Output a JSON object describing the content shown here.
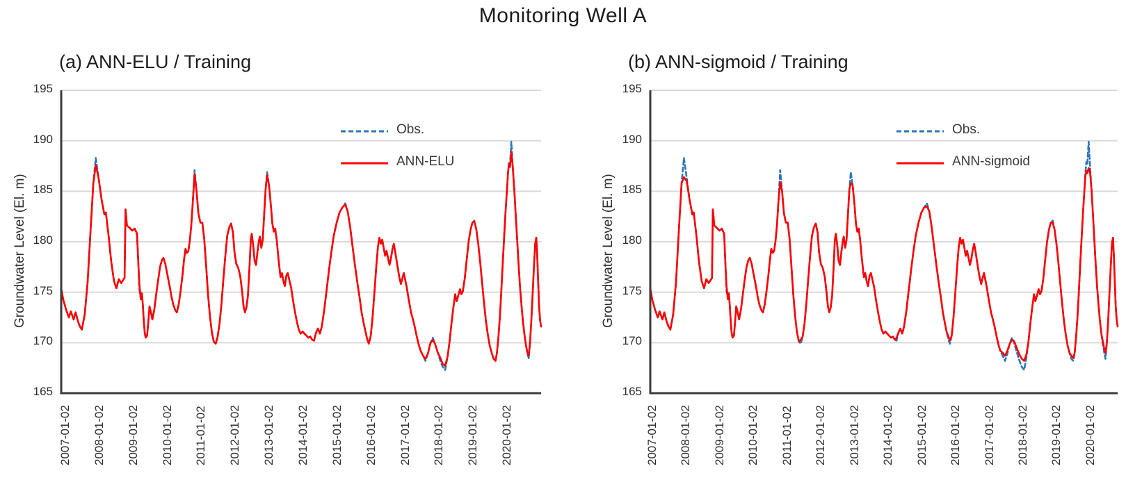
{
  "colors": {
    "obs_blue": "#2E75B6",
    "model_red": "#FF0000",
    "gridline": "#D9D9D9",
    "axis": "#3A3A3A",
    "text": "#1C1C1C"
  },
  "chart_data": {
    "type": "line",
    "title": "Monitoring Well A",
    "ylabel": "Groundwater Level (El. m)",
    "xlabel": "",
    "ylim": [
      165,
      195
    ],
    "y_ticks": [
      195,
      190,
      185,
      180,
      175,
      170,
      165
    ],
    "grid": "horizontal",
    "legend_position": "inside-top-center",
    "x_tick_labels": [
      "2007-01-02",
      "2008-01-02",
      "2009-01-02",
      "2010-01-02",
      "2011-01-02",
      "2012-01-02",
      "2013-01-02",
      "2014-01-02",
      "2015-01-02",
      "2016-01-02",
      "2017-01-02",
      "2018-01-02",
      "2019-01-02",
      "2020-01-02"
    ],
    "x": [
      0.0,
      0.004,
      0.01,
      0.016,
      0.02,
      0.026,
      0.03,
      0.035,
      0.039,
      0.043,
      0.049,
      0.055,
      0.061,
      0.067,
      0.072,
      0.078,
      0.084,
      0.09,
      0.093,
      0.099,
      0.104,
      0.11,
      0.115,
      0.12,
      0.125,
      0.129,
      0.132,
      0.134,
      0.137,
      0.142,
      0.148,
      0.153,
      0.158,
      0.161,
      0.163,
      0.166,
      0.168,
      0.17,
      0.172,
      0.174,
      0.176,
      0.179,
      0.181,
      0.184,
      0.187,
      0.19,
      0.194,
      0.198,
      0.202,
      0.206,
      0.21,
      0.213,
      0.217,
      0.221,
      0.226,
      0.23,
      0.234,
      0.238,
      0.241,
      0.245,
      0.249,
      0.253,
      0.256,
      0.259,
      0.262,
      0.265,
      0.268,
      0.271,
      0.274,
      0.278,
      0.282,
      0.286,
      0.29,
      0.294,
      0.298,
      0.302,
      0.306,
      0.31,
      0.314,
      0.318,
      0.322,
      0.326,
      0.33,
      0.334,
      0.338,
      0.342,
      0.346,
      0.35,
      0.354,
      0.358,
      0.361,
      0.365,
      0.369,
      0.373,
      0.377,
      0.38,
      0.383,
      0.386,
      0.389,
      0.392,
      0.395,
      0.397,
      0.4,
      0.403,
      0.406,
      0.409,
      0.412,
      0.414,
      0.417,
      0.42,
      0.423,
      0.426,
      0.429,
      0.433,
      0.437,
      0.44,
      0.443,
      0.446,
      0.449,
      0.453,
      0.457,
      0.46,
      0.463,
      0.466,
      0.469,
      0.472,
      0.476,
      0.479,
      0.483,
      0.487,
      0.491,
      0.495,
      0.499,
      0.503,
      0.507,
      0.511,
      0.515,
      0.519,
      0.523,
      0.527,
      0.531,
      0.535,
      0.539,
      0.543,
      0.548,
      0.553,
      0.558,
      0.563,
      0.568,
      0.574,
      0.58,
      0.586,
      0.592,
      0.597,
      0.602,
      0.607,
      0.612,
      0.617,
      0.622,
      0.626,
      0.63,
      0.634,
      0.638,
      0.641,
      0.645,
      0.649,
      0.653,
      0.657,
      0.66,
      0.663,
      0.666,
      0.669,
      0.672,
      0.675,
      0.678,
      0.681,
      0.684,
      0.687,
      0.69,
      0.693,
      0.696,
      0.699,
      0.702,
      0.705,
      0.708,
      0.711,
      0.714,
      0.717,
      0.72,
      0.723,
      0.726,
      0.729,
      0.733,
      0.737,
      0.741,
      0.745,
      0.749,
      0.754,
      0.759,
      0.764,
      0.769,
      0.774,
      0.779,
      0.784,
      0.79,
      0.795,
      0.8,
      0.805,
      0.809,
      0.813,
      0.817,
      0.821,
      0.824,
      0.827,
      0.831,
      0.834,
      0.837,
      0.841,
      0.845,
      0.849,
      0.853,
      0.857,
      0.861,
      0.865,
      0.869,
      0.873,
      0.877,
      0.881,
      0.885,
      0.889,
      0.893,
      0.897,
      0.901,
      0.905,
      0.908,
      0.911,
      0.914,
      0.917,
      0.92,
      0.923,
      0.926,
      0.929,
      0.931,
      0.933,
      0.935,
      0.938,
      0.941,
      0.944,
      0.947,
      0.95,
      0.953,
      0.956,
      0.959,
      0.962,
      0.965,
      0.968,
      0.971,
      0.974,
      0.977,
      0.98,
      0.983,
      0.986,
      0.988,
      0.99,
      0.992,
      0.994,
      0.996,
      0.998,
      1.0
    ],
    "series": {
      "obs": [
        175.4,
        174.3,
        173.3,
        172.5,
        173.1,
        172.3,
        173.0,
        172.1,
        171.6,
        171.3,
        172.8,
        176.0,
        181.0,
        185.8,
        188.3,
        186.3,
        184.2,
        182.7,
        182.9,
        180.5,
        178.1,
        176.1,
        175.4,
        176.3,
        175.9,
        176.2,
        176.4,
        183.2,
        181.6,
        181.4,
        181.1,
        181.3,
        180.8,
        177.5,
        175.2,
        174.3,
        174.9,
        173.8,
        172.2,
        171.0,
        170.5,
        170.7,
        171.8,
        173.6,
        173.0,
        172.3,
        173.3,
        174.8,
        176.2,
        177.5,
        178.2,
        178.4,
        177.8,
        176.8,
        175.6,
        174.5,
        173.7,
        173.2,
        173.0,
        173.8,
        175.2,
        176.8,
        178.2,
        179.3,
        178.9,
        179.1,
        180.1,
        181.6,
        183.8,
        187.1,
        185.0,
        182.8,
        181.9,
        181.9,
        180.3,
        177.6,
        174.8,
        172.6,
        171.0,
        170.1,
        169.9,
        170.6,
        171.9,
        173.9,
        176.3,
        178.6,
        180.6,
        181.4,
        181.8,
        180.9,
        179.0,
        177.8,
        177.4,
        176.6,
        175.1,
        173.6,
        173.0,
        173.5,
        174.6,
        177.2,
        180.2,
        180.8,
        179.7,
        178.1,
        177.7,
        179.0,
        180.1,
        180.5,
        179.4,
        180.2,
        182.8,
        185.2,
        186.9,
        185.6,
        183.6,
        181.8,
        181.0,
        181.3,
        180.2,
        178.2,
        176.5,
        176.9,
        176.1,
        175.6,
        176.6,
        176.9,
        176.1,
        175.5,
        174.2,
        173.1,
        172.1,
        171.3,
        170.9,
        171.1,
        170.9,
        170.7,
        170.5,
        170.6,
        170.3,
        170.2,
        171.0,
        171.4,
        170.9,
        171.6,
        173.2,
        175.2,
        177.2,
        179.0,
        180.6,
        181.9,
        182.9,
        183.4,
        183.8,
        183.0,
        181.5,
        179.6,
        177.7,
        176.0,
        174.4,
        173.0,
        172.0,
        171.1,
        170.3,
        169.9,
        170.7,
        172.6,
        175.2,
        177.8,
        179.5,
        180.4,
        179.8,
        180.2,
        179.4,
        178.6,
        179.1,
        178.4,
        177.7,
        178.3,
        179.2,
        179.8,
        179.0,
        178.1,
        177.2,
        176.4,
        175.8,
        176.4,
        176.9,
        176.2,
        175.5,
        174.6,
        173.8,
        173.0,
        172.3,
        171.5,
        170.6,
        169.8,
        169.2,
        168.7,
        168.2,
        168.9,
        169.9,
        170.5,
        169.9,
        169.1,
        168.2,
        167.6,
        167.3,
        168.6,
        170.0,
        171.8,
        173.4,
        174.8,
        174.1,
        174.6,
        175.3,
        174.8,
        175.1,
        176.4,
        178.2,
        180.0,
        181.2,
        181.9,
        182.1,
        181.2,
        179.8,
        178.0,
        176.0,
        174.0,
        172.2,
        170.8,
        169.7,
        169.0,
        168.4,
        168.2,
        169.0,
        170.5,
        172.5,
        175.0,
        177.8,
        180.5,
        183.0,
        185.2,
        186.8,
        187.9,
        187.6,
        189.9,
        187.4,
        185.2,
        182.8,
        180.3,
        177.8,
        175.6,
        173.8,
        172.2,
        170.9,
        169.9,
        169.1,
        168.4,
        170.0,
        172.5,
        175.5,
        178.3,
        179.9,
        180.4,
        178.5,
        175.8,
        173.5,
        172.2,
        171.6
      ],
      "ann_elu": {
        "base": "obs",
        "overrides": {
          "14": 187.6,
          "34": 175.7,
          "69": 186.7,
          "112": 186.6,
          "152": 183.7,
          "198": 168.4,
          "201": 170.3,
          "204": 168.5,
          "205": 167.9,
          "206": 167.7,
          "222": 182.0,
          "243": 187.7,
          "244": 187.4,
          "245": 188.9,
          "257": 168.7
        }
      },
      "ann_sigmoid": {
        "base": "obs",
        "overrides": {
          "14": 186.4,
          "15": 186.0,
          "34": 175.7,
          "69": 185.9,
          "80": 170.3,
          "112": 185.8,
          "139": 170.5,
          "152": 183.5,
          "162": 170.6,
          "163": 170.2,
          "197": 169.0,
          "198": 168.7,
          "199": 169.2,
          "201": 170.3,
          "202": 170.1,
          "203": 169.5,
          "204": 168.8,
          "205": 168.4,
          "206": 168.2,
          "207": 168.9,
          "222": 181.9,
          "232": 168.7,
          "233": 168.5,
          "242": 186.5,
          "243": 187.0,
          "244": 186.8,
          "245": 187.3,
          "246": 186.8,
          "255": 170.2,
          "256": 169.5,
          "257": 169.0
        }
      }
    },
    "charts": [
      {
        "title": "(a) ANN-ELU / Training",
        "ylabel": "Groundwater Level (El. m)",
        "series_names": [
          "obs",
          "ann_elu"
        ],
        "legend": [
          "Obs.",
          "ANN-ELU"
        ]
      },
      {
        "title": "(b) ANN-sigmoid / Training",
        "ylabel": "Groundwater Level (El. m)",
        "series_names": [
          "obs",
          "ann_sigmoid"
        ],
        "legend": [
          "Obs.",
          "ANN-sigmoid"
        ]
      }
    ]
  }
}
